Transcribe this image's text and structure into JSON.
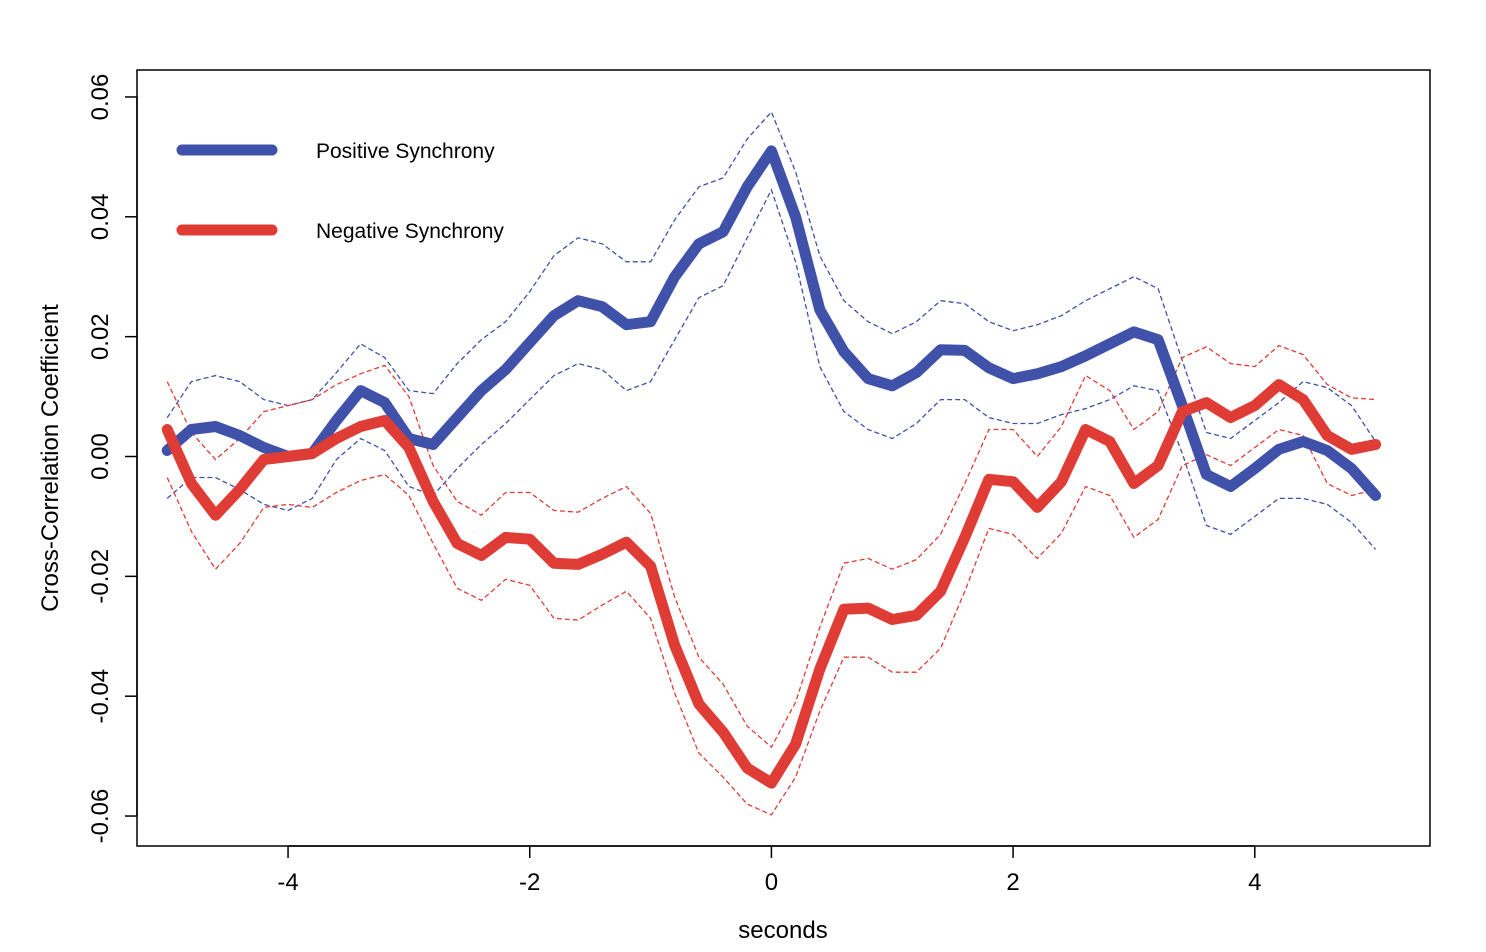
{
  "chart_data": {
    "type": "line",
    "xlabel": "seconds",
    "ylabel": "Cross-Correlation Coefficient",
    "xlim": [
      -5.25,
      5.45
    ],
    "ylim": [
      -0.065,
      0.0645
    ],
    "x_ticks": [
      -4,
      -2,
      0,
      2,
      4
    ],
    "x_tick_labels": [
      "-4",
      "-2",
      "0",
      "2",
      "4"
    ],
    "y_ticks": [
      -0.06,
      -0.04,
      -0.02,
      0.0,
      0.02,
      0.04,
      0.06
    ],
    "y_tick_labels": [
      "-0.06",
      "-0.04",
      "-0.02",
      "0.00",
      "0.02",
      "0.04",
      "0.06"
    ],
    "grid": false,
    "legend_position": "top-left",
    "x": [
      -5.0,
      -4.8,
      -4.6,
      -4.4,
      -4.2,
      -4.0,
      -3.8,
      -3.6,
      -3.4,
      -3.2,
      -3.0,
      -2.8,
      -2.6,
      -2.4,
      -2.2,
      -2.0,
      -1.8,
      -1.6,
      -1.4,
      -1.2,
      -1.0,
      -0.8,
      -0.6,
      -0.4,
      -0.2,
      0.0,
      0.2,
      0.4,
      0.6,
      0.8,
      1.0,
      1.2,
      1.4,
      1.6,
      1.8,
      2.0,
      2.2,
      2.4,
      2.6,
      2.8,
      3.0,
      3.2,
      3.4,
      3.6,
      3.8,
      4.0,
      4.2,
      4.4,
      4.6,
      4.8,
      5.0
    ],
    "series": [
      {
        "name": "Positive Synchrony",
        "color": "#3f51a8",
        "values": [
          0.001,
          0.0045,
          0.005,
          0.0035,
          0.0015,
          0.0,
          0.0005,
          0.006,
          0.011,
          0.009,
          0.003,
          0.002,
          0.0065,
          0.011,
          0.0145,
          0.019,
          0.0235,
          0.026,
          0.025,
          0.022,
          0.0225,
          0.03,
          0.0355,
          0.0375,
          0.045,
          0.051,
          0.04,
          0.0245,
          0.0175,
          0.013,
          0.0118,
          0.014,
          0.0178,
          0.0177,
          0.0148,
          0.013,
          0.0138,
          0.015,
          0.0168,
          0.0188,
          0.0208,
          0.0195,
          0.0085,
          -0.003,
          -0.005,
          -0.002,
          0.0012,
          0.0025,
          0.001,
          -0.002,
          -0.0065
        ],
        "upper": [
          0.0065,
          0.0125,
          0.0135,
          0.0125,
          0.0095,
          0.0085,
          0.0095,
          0.014,
          0.0188,
          0.0165,
          0.011,
          0.0105,
          0.0155,
          0.0195,
          0.0225,
          0.0275,
          0.0335,
          0.0365,
          0.0355,
          0.0325,
          0.0325,
          0.0395,
          0.045,
          0.0465,
          0.053,
          0.0575,
          0.0475,
          0.0335,
          0.026,
          0.0225,
          0.0205,
          0.0225,
          0.026,
          0.0255,
          0.0225,
          0.021,
          0.022,
          0.0235,
          0.026,
          0.028,
          0.03,
          0.028,
          0.016,
          0.004,
          0.003,
          0.006,
          0.009,
          0.0125,
          0.0115,
          0.0085,
          0.0025
        ],
        "lower": [
          -0.007,
          -0.0035,
          -0.0035,
          -0.0055,
          -0.008,
          -0.009,
          -0.007,
          -0.0005,
          0.003,
          0.001,
          -0.005,
          -0.0065,
          -0.002,
          0.002,
          0.0055,
          0.0095,
          0.0135,
          0.0155,
          0.0145,
          0.011,
          0.0125,
          0.0195,
          0.0265,
          0.0285,
          0.0365,
          0.0445,
          0.0325,
          0.015,
          0.0075,
          0.0045,
          0.003,
          0.0055,
          0.0095,
          0.0095,
          0.0065,
          0.0055,
          0.0055,
          0.007,
          0.008,
          0.0095,
          0.0118,
          0.011,
          0.0005,
          -0.0115,
          -0.013,
          -0.01,
          -0.007,
          -0.007,
          -0.008,
          -0.011,
          -0.0155
        ]
      },
      {
        "name": "Negative Synchrony",
        "color": "#e03c36",
        "values": [
          0.0045,
          -0.0045,
          -0.0098,
          -0.0055,
          -0.0005,
          0.0,
          0.0005,
          0.003,
          0.005,
          0.006,
          0.0015,
          -0.0075,
          -0.0145,
          -0.0165,
          -0.0135,
          -0.0138,
          -0.0178,
          -0.018,
          -0.0163,
          -0.0143,
          -0.0183,
          -0.0315,
          -0.0413,
          -0.046,
          -0.052,
          -0.0545,
          -0.048,
          -0.0355,
          -0.0255,
          -0.0253,
          -0.0272,
          -0.0265,
          -0.0225,
          -0.0135,
          -0.0038,
          -0.0042,
          -0.0085,
          -0.0042,
          0.0045,
          0.0025,
          -0.0045,
          -0.0015,
          0.0075,
          0.009,
          0.0065,
          0.0085,
          0.012,
          0.0095,
          0.0035,
          0.0012,
          0.002
        ],
        "upper": [
          0.0125,
          0.004,
          -0.0005,
          0.003,
          0.0075,
          0.0085,
          0.0095,
          0.012,
          0.0138,
          0.0152,
          0.01,
          -0.0015,
          -0.0075,
          -0.0098,
          -0.006,
          -0.006,
          -0.009,
          -0.0093,
          -0.007,
          -0.005,
          -0.0095,
          -0.0235,
          -0.0335,
          -0.038,
          -0.045,
          -0.0485,
          -0.041,
          -0.0285,
          -0.0178,
          -0.017,
          -0.0188,
          -0.0172,
          -0.013,
          -0.0045,
          0.0045,
          0.0045,
          0.0,
          0.005,
          0.0135,
          0.011,
          0.0045,
          0.0075,
          0.0165,
          0.0183,
          0.0155,
          0.015,
          0.0185,
          0.017,
          0.012,
          0.0098,
          0.0095
        ],
        "lower": [
          -0.0035,
          -0.0125,
          -0.0188,
          -0.0145,
          -0.0085,
          -0.008,
          -0.0085,
          -0.006,
          -0.004,
          -0.003,
          -0.0065,
          -0.0145,
          -0.022,
          -0.024,
          -0.0205,
          -0.0215,
          -0.027,
          -0.0273,
          -0.0248,
          -0.0225,
          -0.027,
          -0.0395,
          -0.0495,
          -0.0535,
          -0.058,
          -0.0598,
          -0.0535,
          -0.0425,
          -0.0335,
          -0.0335,
          -0.036,
          -0.036,
          -0.032,
          -0.0225,
          -0.012,
          -0.013,
          -0.017,
          -0.0128,
          -0.005,
          -0.0065,
          -0.0135,
          -0.0105,
          -0.0015,
          0.0003,
          -0.0015,
          0.0015,
          0.0045,
          0.0035,
          -0.0045,
          -0.0065,
          -0.0055
        ]
      }
    ]
  }
}
